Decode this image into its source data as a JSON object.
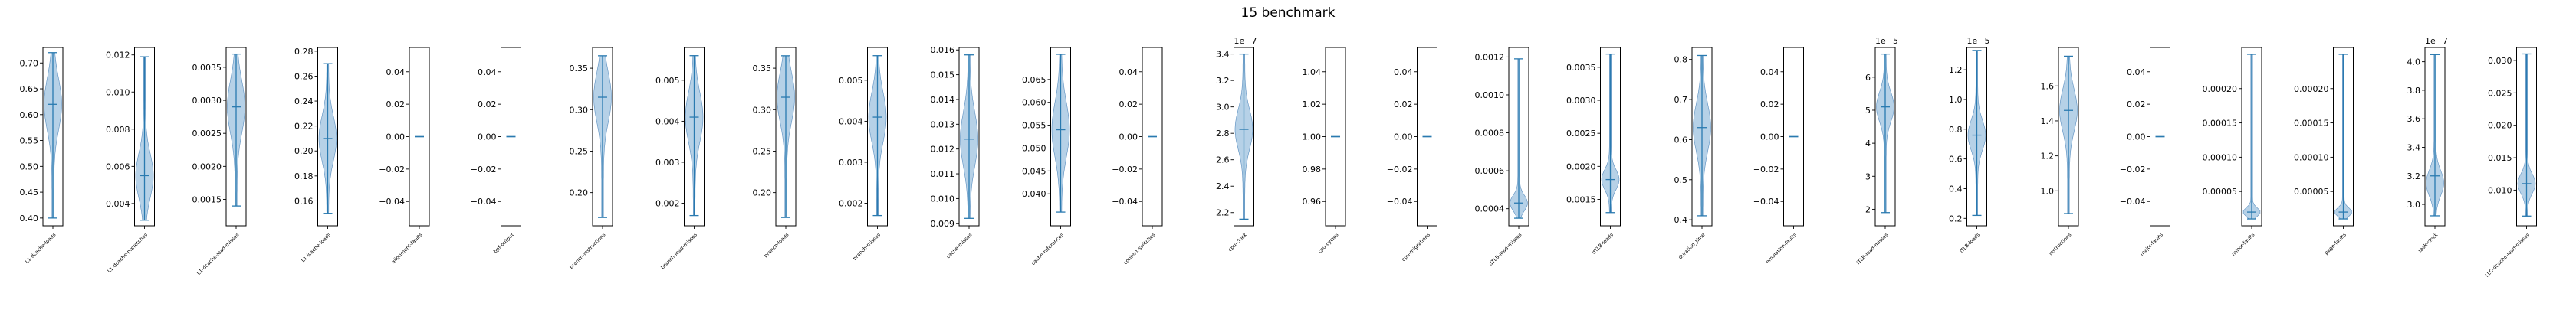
{
  "figure": {
    "title": "15 benchmark"
  },
  "style": {
    "violin_fill": "#a9c9e3",
    "violin_edge": "#5b8fc0",
    "whisker": "#2a7ab0",
    "frame": "#000000"
  },
  "chart_data": {
    "type": "violin",
    "title": "15 benchmark",
    "panels": [
      {
        "label": "L1-dcache-loads",
        "ylim": [
          0.385,
          0.73
        ],
        "ticks": [
          0.4,
          0.45,
          0.5,
          0.55,
          0.6,
          0.65,
          0.7
        ],
        "tick_labels": [
          "0.40",
          "0.45",
          "0.50",
          "0.55",
          "0.60",
          "0.65",
          "0.70"
        ],
        "offset": "",
        "min": 0.4,
        "max": 0.72,
        "median": 0.62,
        "peak": 0.62,
        "spread": 0.05
      },
      {
        "label": "L1-dcache-prefetches",
        "ylim": [
          0.0028,
          0.0124
        ],
        "ticks": [
          0.004,
          0.006,
          0.008,
          0.01,
          0.012
        ],
        "tick_labels": [
          "0.004",
          "0.006",
          "0.008",
          "0.010",
          "0.012"
        ],
        "offset": "",
        "min": 0.0031,
        "max": 0.0119,
        "median": 0.0055,
        "peak": 0.0055,
        "spread": 0.0012
      },
      {
        "label": "L1-dcache-load-misses",
        "ylim": [
          0.0011,
          0.0038
        ],
        "ticks": [
          0.0015,
          0.002,
          0.0025,
          0.003,
          0.0035
        ],
        "tick_labels": [
          "0.0015",
          "0.0020",
          "0.0025",
          "0.0030",
          "0.0035"
        ],
        "offset": "",
        "min": 0.0014,
        "max": 0.0037,
        "median": 0.0029,
        "peak": 0.0029,
        "spread": 0.0004
      },
      {
        "label": "L1-icache-loads",
        "ylim": [
          0.14,
          0.283
        ],
        "ticks": [
          0.16,
          0.18,
          0.2,
          0.22,
          0.24,
          0.26,
          0.28
        ],
        "tick_labels": [
          "0.16",
          "0.18",
          "0.20",
          "0.22",
          "0.24",
          "0.26",
          "0.28"
        ],
        "offset": "",
        "min": 0.15,
        "max": 0.27,
        "median": 0.21,
        "peak": 0.21,
        "spread": 0.018
      },
      {
        "label": "alignment-faults",
        "ylim": [
          -0.055,
          0.055
        ],
        "ticks": [
          -0.04,
          -0.02,
          0.0,
          0.02,
          0.04
        ],
        "tick_labels": [
          "−0.04",
          "−0.02",
          "0.00",
          "0.02",
          "0.04"
        ],
        "offset": "",
        "min": 0.0,
        "max": 0.0,
        "median": 0.0,
        "peak": 0.0,
        "spread": 0.0
      },
      {
        "label": "bpf-output",
        "ylim": [
          -0.055,
          0.055
        ],
        "ticks": [
          -0.04,
          -0.02,
          0.0,
          0.02,
          0.04
        ],
        "tick_labels": [
          "−0.04",
          "−0.02",
          "0.00",
          "0.02",
          "0.04"
        ],
        "offset": "",
        "min": 0.0,
        "max": 0.0,
        "median": 0.0,
        "peak": 0.0,
        "spread": 0.0
      },
      {
        "label": "branch-instructions",
        "ylim": [
          0.16,
          0.375
        ],
        "ticks": [
          0.2,
          0.25,
          0.3,
          0.35
        ],
        "tick_labels": [
          "0.20",
          "0.25",
          "0.30",
          "0.35"
        ],
        "offset": "",
        "min": 0.17,
        "max": 0.365,
        "median": 0.315,
        "peak": 0.315,
        "spread": 0.03
      },
      {
        "label": "branch-load-misses",
        "ylim": [
          0.00145,
          0.0058
        ],
        "ticks": [
          0.002,
          0.003,
          0.004,
          0.005
        ],
        "tick_labels": [
          "0.002",
          "0.003",
          "0.004",
          "0.005"
        ],
        "offset": "",
        "min": 0.0017,
        "max": 0.0056,
        "median": 0.0041,
        "peak": 0.0041,
        "spread": 0.0006
      },
      {
        "label": "branch-loads",
        "ylim": [
          0.16,
          0.375
        ],
        "ticks": [
          0.2,
          0.25,
          0.3,
          0.35
        ],
        "tick_labels": [
          "0.20",
          "0.25",
          "0.30",
          "0.35"
        ],
        "offset": "",
        "min": 0.17,
        "max": 0.365,
        "median": 0.315,
        "peak": 0.315,
        "spread": 0.03
      },
      {
        "label": "branch-misses",
        "ylim": [
          0.00145,
          0.0058
        ],
        "ticks": [
          0.002,
          0.003,
          0.004,
          0.005
        ],
        "tick_labels": [
          "0.002",
          "0.003",
          "0.004",
          "0.005"
        ],
        "offset": "",
        "min": 0.0017,
        "max": 0.0056,
        "median": 0.0041,
        "peak": 0.0041,
        "spread": 0.0006
      },
      {
        "label": "cache-misses",
        "ylim": [
          0.0089,
          0.0161
        ],
        "ticks": [
          0.009,
          0.01,
          0.011,
          0.012,
          0.013,
          0.014,
          0.015,
          0.016
        ],
        "tick_labels": [
          "0.009",
          "0.010",
          "0.011",
          "0.012",
          "0.013",
          "0.014",
          "0.015",
          "0.016"
        ],
        "offset": "",
        "min": 0.0092,
        "max": 0.0158,
        "median": 0.0124,
        "peak": 0.0124,
        "spread": 0.0011
      },
      {
        "label": "cache-references",
        "ylim": [
          0.033,
          0.072
        ],
        "ticks": [
          0.04,
          0.045,
          0.05,
          0.055,
          0.06,
          0.065
        ],
        "tick_labels": [
          "0.040",
          "0.045",
          "0.050",
          "0.055",
          "0.060",
          "0.065"
        ],
        "offset": "",
        "min": 0.036,
        "max": 0.0705,
        "median": 0.054,
        "peak": 0.054,
        "spread": 0.006
      },
      {
        "label": "context-switches",
        "ylim": [
          -0.055,
          0.055
        ],
        "ticks": [
          -0.04,
          -0.02,
          0.0,
          0.02,
          0.04
        ],
        "tick_labels": [
          "−0.04",
          "−0.02",
          "0.00",
          "0.02",
          "0.04"
        ],
        "offset": "",
        "min": 0.0,
        "max": 0.0,
        "median": 0.0,
        "peak": 0.0,
        "spread": 0.0
      },
      {
        "label": "cpu-clock",
        "ylim": [
          2.1,
          3.45
        ],
        "ticks": [
          2.2,
          2.4,
          2.6,
          2.8,
          3.0,
          3.2,
          3.4
        ],
        "tick_labels": [
          "2.2",
          "2.4",
          "2.6",
          "2.8",
          "3.0",
          "3.2",
          "3.4"
        ],
        "offset": "1e−7",
        "min": 2.15,
        "max": 3.4,
        "median": 2.83,
        "peak": 2.83,
        "spread": 0.15
      },
      {
        "label": "cpu-cycles",
        "ylim": [
          0.945,
          1.055
        ],
        "ticks": [
          0.96,
          0.98,
          1.0,
          1.02,
          1.04
        ],
        "tick_labels": [
          "0.96",
          "0.98",
          "1.00",
          "1.02",
          "1.04"
        ],
        "offset": "",
        "min": 1.0,
        "max": 1.0,
        "median": 1.0,
        "peak": 1.0,
        "spread": 0.0
      },
      {
        "label": "cpu-migrations",
        "ylim": [
          -0.055,
          0.055
        ],
        "ticks": [
          -0.04,
          -0.02,
          0.0,
          0.02,
          0.04
        ],
        "tick_labels": [
          "−0.04",
          "−0.02",
          "0.00",
          "0.02",
          "0.04"
        ],
        "offset": "",
        "min": 0.0,
        "max": 0.0,
        "median": 0.0,
        "peak": 0.0,
        "spread": 0.0
      },
      {
        "label": "dTLB-load-misses",
        "ylim": [
          0.00031,
          0.00125
        ],
        "ticks": [
          0.0004,
          0.0006,
          0.0008,
          0.001,
          0.0012
        ],
        "tick_labels": [
          "0.0004",
          "0.0006",
          "0.0008",
          "0.0010",
          "0.0012"
        ],
        "offset": "",
        "min": 0.00035,
        "max": 0.00119,
        "median": 0.00043,
        "peak": 0.00043,
        "spread": 4e-05
      },
      {
        "label": "dTLB-loads",
        "ylim": [
          0.0011,
          0.0038
        ],
        "ticks": [
          0.0015,
          0.002,
          0.0025,
          0.003,
          0.0035
        ],
        "tick_labels": [
          "0.0015",
          "0.0020",
          "0.0025",
          "0.0030",
          "0.0035"
        ],
        "offset": "",
        "min": 0.0013,
        "max": 0.0037,
        "median": 0.0018,
        "peak": 0.0018,
        "spread": 0.00015
      },
      {
        "label": "duration_time",
        "ylim": [
          0.385,
          0.83
        ],
        "ticks": [
          0.4,
          0.5,
          0.6,
          0.7,
          0.8
        ],
        "tick_labels": [
          "0.4",
          "0.5",
          "0.6",
          "0.7",
          "0.8"
        ],
        "offset": "",
        "min": 0.41,
        "max": 0.81,
        "median": 0.63,
        "peak": 0.63,
        "spread": 0.06
      },
      {
        "label": "emulation-faults",
        "ylim": [
          -0.055,
          0.055
        ],
        "ticks": [
          -0.04,
          -0.02,
          0.0,
          0.02,
          0.04
        ],
        "tick_labels": [
          "−0.04",
          "−0.02",
          "0.00",
          "0.02",
          "0.04"
        ],
        "offset": "",
        "min": 0.0,
        "max": 0.0,
        "median": 0.0,
        "peak": 0.0,
        "spread": 0.0
      },
      {
        "label": "iTLB-load-misses",
        "ylim": [
          1.5,
          6.9
        ],
        "ticks": [
          2,
          3,
          4,
          5,
          6
        ],
        "tick_labels": [
          "2",
          "3",
          "4",
          "5",
          "6"
        ],
        "offset": "1e−5",
        "min": 1.9,
        "max": 6.7,
        "median": 5.1,
        "peak": 5.1,
        "spread": 0.45
      },
      {
        "label": "iTLB-loads",
        "ylim": [
          0.15,
          1.35
        ],
        "ticks": [
          0.2,
          0.4,
          0.6,
          0.8,
          1.0,
          1.2
        ],
        "tick_labels": [
          "0.2",
          "0.4",
          "0.6",
          "0.8",
          "1.0",
          "1.2"
        ],
        "offset": "1e−5",
        "min": 0.22,
        "max": 1.33,
        "median": 0.76,
        "peak": 0.76,
        "spread": 0.1
      },
      {
        "label": "instructions",
        "ylim": [
          0.8,
          1.82
        ],
        "ticks": [
          1.0,
          1.2,
          1.4,
          1.6
        ],
        "tick_labels": [
          "1.0",
          "1.2",
          "1.4",
          "1.6"
        ],
        "offset": "",
        "min": 0.87,
        "max": 1.77,
        "median": 1.46,
        "peak": 1.46,
        "spread": 0.12
      },
      {
        "label": "major-faults",
        "ylim": [
          -0.055,
          0.055
        ],
        "ticks": [
          -0.04,
          -0.02,
          0.0,
          0.02,
          0.04
        ],
        "tick_labels": [
          "−0.04",
          "−0.02",
          "0.00",
          "0.02",
          "0.04"
        ],
        "offset": "",
        "min": 0.0,
        "max": 0.0,
        "median": 0.0,
        "peak": 0.0,
        "spread": 0.0
      },
      {
        "label": "minor-faults",
        "ylim": [
          0.0,
          0.00026
        ],
        "ticks": [
          5e-05,
          0.0001,
          0.00015,
          0.0002
        ],
        "tick_labels": [
          "0.00005",
          "0.00010",
          "0.00015",
          "0.00020"
        ],
        "offset": "",
        "min": 1e-05,
        "max": 0.00025,
        "median": 2e-05,
        "peak": 2e-05,
        "spread": 6e-06
      },
      {
        "label": "page-faults",
        "ylim": [
          0.0,
          0.00026
        ],
        "ticks": [
          5e-05,
          0.0001,
          0.00015,
          0.0002
        ],
        "tick_labels": [
          "0.00005",
          "0.00010",
          "0.00015",
          "0.00020"
        ],
        "offset": "",
        "min": 1e-05,
        "max": 0.00025,
        "median": 2e-05,
        "peak": 2e-05,
        "spread": 6e-06
      },
      {
        "label": "task-clock",
        "ylim": [
          2.85,
          4.1
        ],
        "ticks": [
          3.0,
          3.2,
          3.4,
          3.6,
          3.8,
          4.0
        ],
        "tick_labels": [
          "3.0",
          "3.2",
          "3.4",
          "3.6",
          "3.8",
          "4.0"
        ],
        "offset": "1e−7",
        "min": 2.92,
        "max": 4.05,
        "median": 3.2,
        "peak": 3.15,
        "spread": 0.09
      },
      {
        "label": "LLC-dcache-load-misses",
        "ylim": [
          0.0045,
          0.032
        ],
        "ticks": [
          0.01,
          0.015,
          0.02,
          0.025,
          0.03
        ],
        "tick_labels": [
          "0.010",
          "0.015",
          "0.020",
          "0.025",
          "0.030"
        ],
        "offset": "",
        "min": 0.006,
        "max": 0.031,
        "median": 0.011,
        "peak": 0.011,
        "spread": 0.0015
      }
    ]
  }
}
